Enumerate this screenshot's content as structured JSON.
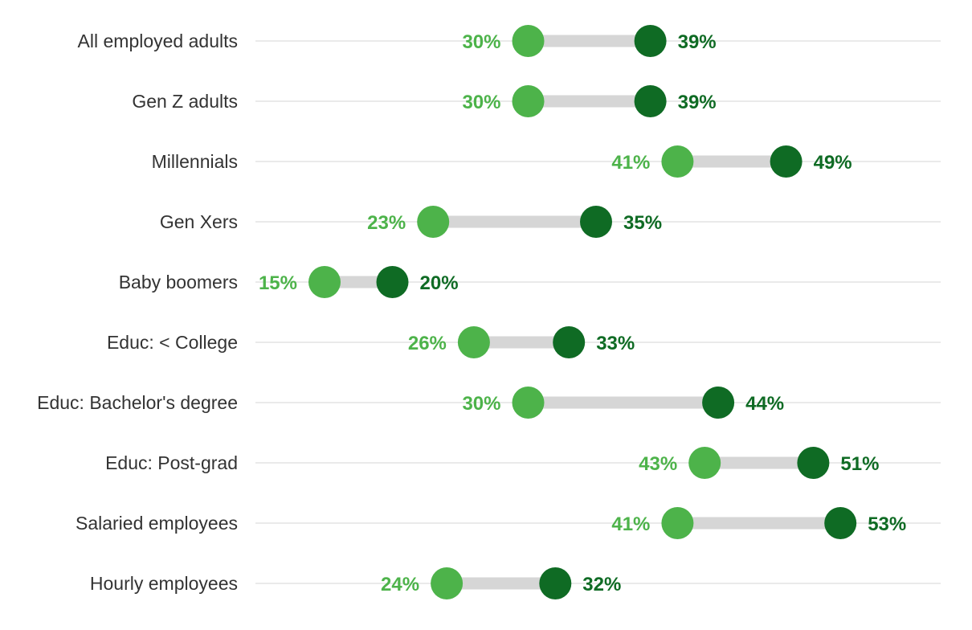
{
  "chart_data": {
    "type": "dumbbell",
    "categories": [
      "All employed adults",
      "Gen Z adults",
      "Millennials",
      "Gen Xers",
      "Baby boomers",
      "Educ: < College",
      "Educ: Bachelor's degree",
      "Educ: Post-grad",
      "Salaried employees",
      "Hourly employees"
    ],
    "series": [
      {
        "values": [
          30,
          30,
          41,
          23,
          15,
          26,
          30,
          43,
          41,
          24
        ],
        "labels": [
          "30%",
          "30%",
          "41%",
          "23%",
          "15%",
          "26%",
          "30%",
          "43%",
          "41%",
          "24%"
        ],
        "color": "#4db34a"
      },
      {
        "values": [
          39,
          39,
          49,
          35,
          20,
          33,
          44,
          51,
          53,
          32
        ],
        "labels": [
          "39%",
          "39%",
          "49%",
          "35%",
          "20%",
          "33%",
          "44%",
          "51%",
          "53%",
          "32%"
        ],
        "color": "#0f6b24"
      }
    ],
    "xlim": [
      10,
      60
    ],
    "connector_color": "#d6d6d6",
    "gridline_color": "#e3e3e3",
    "grid": true,
    "legend": "none",
    "title": "",
    "xlabel": "",
    "ylabel": ""
  }
}
